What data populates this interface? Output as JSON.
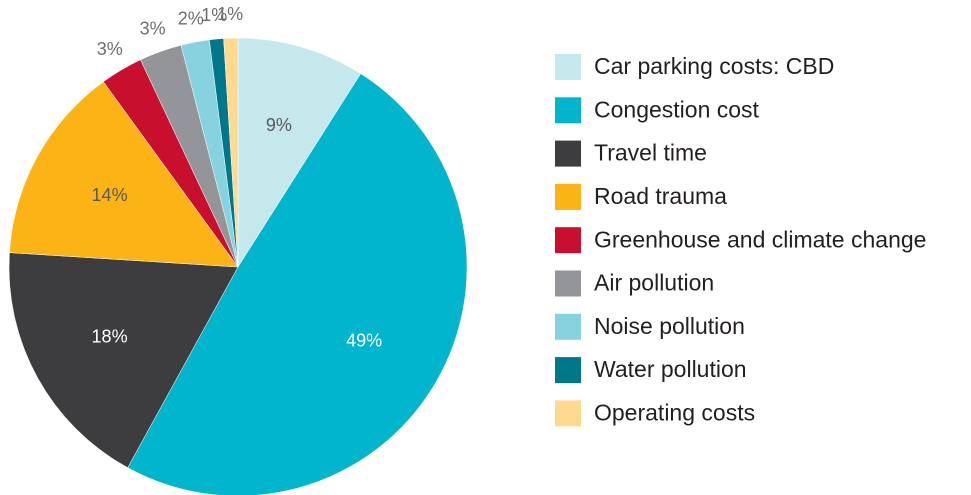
{
  "chart_data": {
    "type": "pie",
    "categories": [
      "Car parking costs: CBD",
      "Congestion cost",
      "Travel time",
      "Road trauma",
      "Greenhouse and climate change",
      "Air pollution",
      "Noise pollution",
      "Water pollution",
      "Operating costs"
    ],
    "values": [
      9,
      49,
      18,
      14,
      3,
      3,
      2,
      1,
      1
    ],
    "value_labels": [
      "9%",
      "49%",
      "18%",
      "14%",
      "3%",
      "3%",
      "2%",
      "1%",
      "1%"
    ],
    "colors": [
      "#c5e8ec",
      "#00b5cc",
      "#3d3d3f",
      "#fbb316",
      "#c8102e",
      "#939598",
      "#86d3df",
      "#00788a",
      "#fed98e"
    ],
    "legend": "right"
  }
}
